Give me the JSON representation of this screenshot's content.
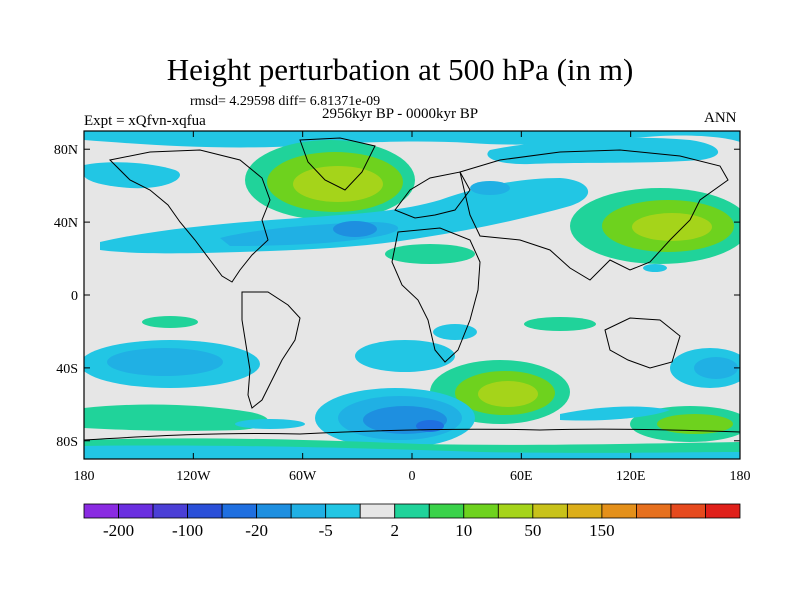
{
  "title": "Height perturbation at 500 hPa (in m)",
  "stats": "rmsd= 4.29598 diff= 6.81371e-09",
  "period": "2956kyr BP - 0000kyr BP",
  "experiment": "Expt = xQfvn-xqfua",
  "season": "ANN",
  "map": {
    "projection": "cylindrical-equidistant",
    "lon_range": [
      -180,
      180
    ],
    "lat_range": [
      -90,
      90
    ],
    "x_ticks": [
      {
        "value": -180,
        "label": "180"
      },
      {
        "value": -120,
        "label": "120W"
      },
      {
        "value": -60,
        "label": "60W"
      },
      {
        "value": 0,
        "label": "0"
      },
      {
        "value": 60,
        "label": "60E"
      },
      {
        "value": 120,
        "label": "120E"
      },
      {
        "value": 180,
        "label": "180"
      }
    ],
    "y_ticks": [
      {
        "value": 80,
        "label": "80N"
      },
      {
        "value": 40,
        "label": "40N"
      },
      {
        "value": 0,
        "label": "0"
      },
      {
        "value": -40,
        "label": "40S"
      },
      {
        "value": -80,
        "label": "80S"
      }
    ],
    "background_color": "#e6e6e6"
  },
  "colorbar": {
    "colors": [
      "#8a2be2",
      "#6a2ee0",
      "#4b3fd6",
      "#2a4fd8",
      "#1f6fe0",
      "#1e8fe0",
      "#20b0e4",
      "#22c6e4",
      "#e6e6e6",
      "#20d39a",
      "#3ad24a",
      "#6ed21e",
      "#a5d41a",
      "#c8c21a",
      "#dcae19",
      "#e4901a",
      "#e6701e",
      "#e64a1e",
      "#e0201a"
    ],
    "labels": [
      {
        "after": 1,
        "text": "-200"
      },
      {
        "after": 3,
        "text": "-100"
      },
      {
        "after": 5,
        "text": "-20"
      },
      {
        "after": 7,
        "text": "-5"
      },
      {
        "after": 9,
        "text": "2"
      },
      {
        "after": 11,
        "text": "10"
      },
      {
        "after": 13,
        "text": "50"
      },
      {
        "after": 15,
        "text": "150"
      }
    ]
  }
}
